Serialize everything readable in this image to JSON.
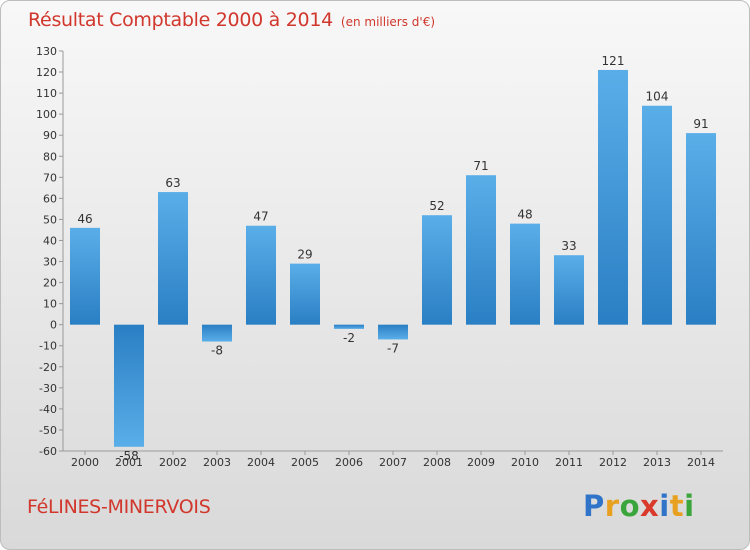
{
  "header": {
    "title": "Résultat Comptable 2000 à 2014",
    "unit": "(en milliers d'€)"
  },
  "footer": {
    "commune": "FéLINES-MINERVOIS",
    "logo_letters": [
      {
        "char": "P",
        "color": "#2f74c9"
      },
      {
        "char": "r",
        "color": "#e8a020"
      },
      {
        "char": "o",
        "color": "#3aa53a"
      },
      {
        "char": "x",
        "color": "#d93a2b"
      },
      {
        "char": "i",
        "color": "#2f74c9"
      },
      {
        "char": "t",
        "color": "#e8a020"
      },
      {
        "char": "i",
        "color": "#3aa53a"
      }
    ]
  },
  "chart_data": {
    "type": "bar",
    "title": "Résultat Comptable 2000 à 2014",
    "subtitle": "(en milliers d'€)",
    "xlabel": "",
    "ylabel": "",
    "categories": [
      "2000",
      "2001",
      "2002",
      "2003",
      "2004",
      "2005",
      "2006",
      "2007",
      "2008",
      "2009",
      "2010",
      "2011",
      "2012",
      "2013",
      "2014"
    ],
    "values": [
      46,
      -58,
      63,
      -8,
      47,
      29,
      -2,
      -7,
      52,
      71,
      48,
      33,
      121,
      104,
      91
    ],
    "ylim": [
      -60,
      130
    ],
    "ytick_step": 10,
    "grid": false,
    "legend": "none",
    "colors": {
      "bar_light": "#5aaee8",
      "bar_dark": "#2a7fc4",
      "axis": "#999999",
      "title": "#d1372c"
    }
  }
}
